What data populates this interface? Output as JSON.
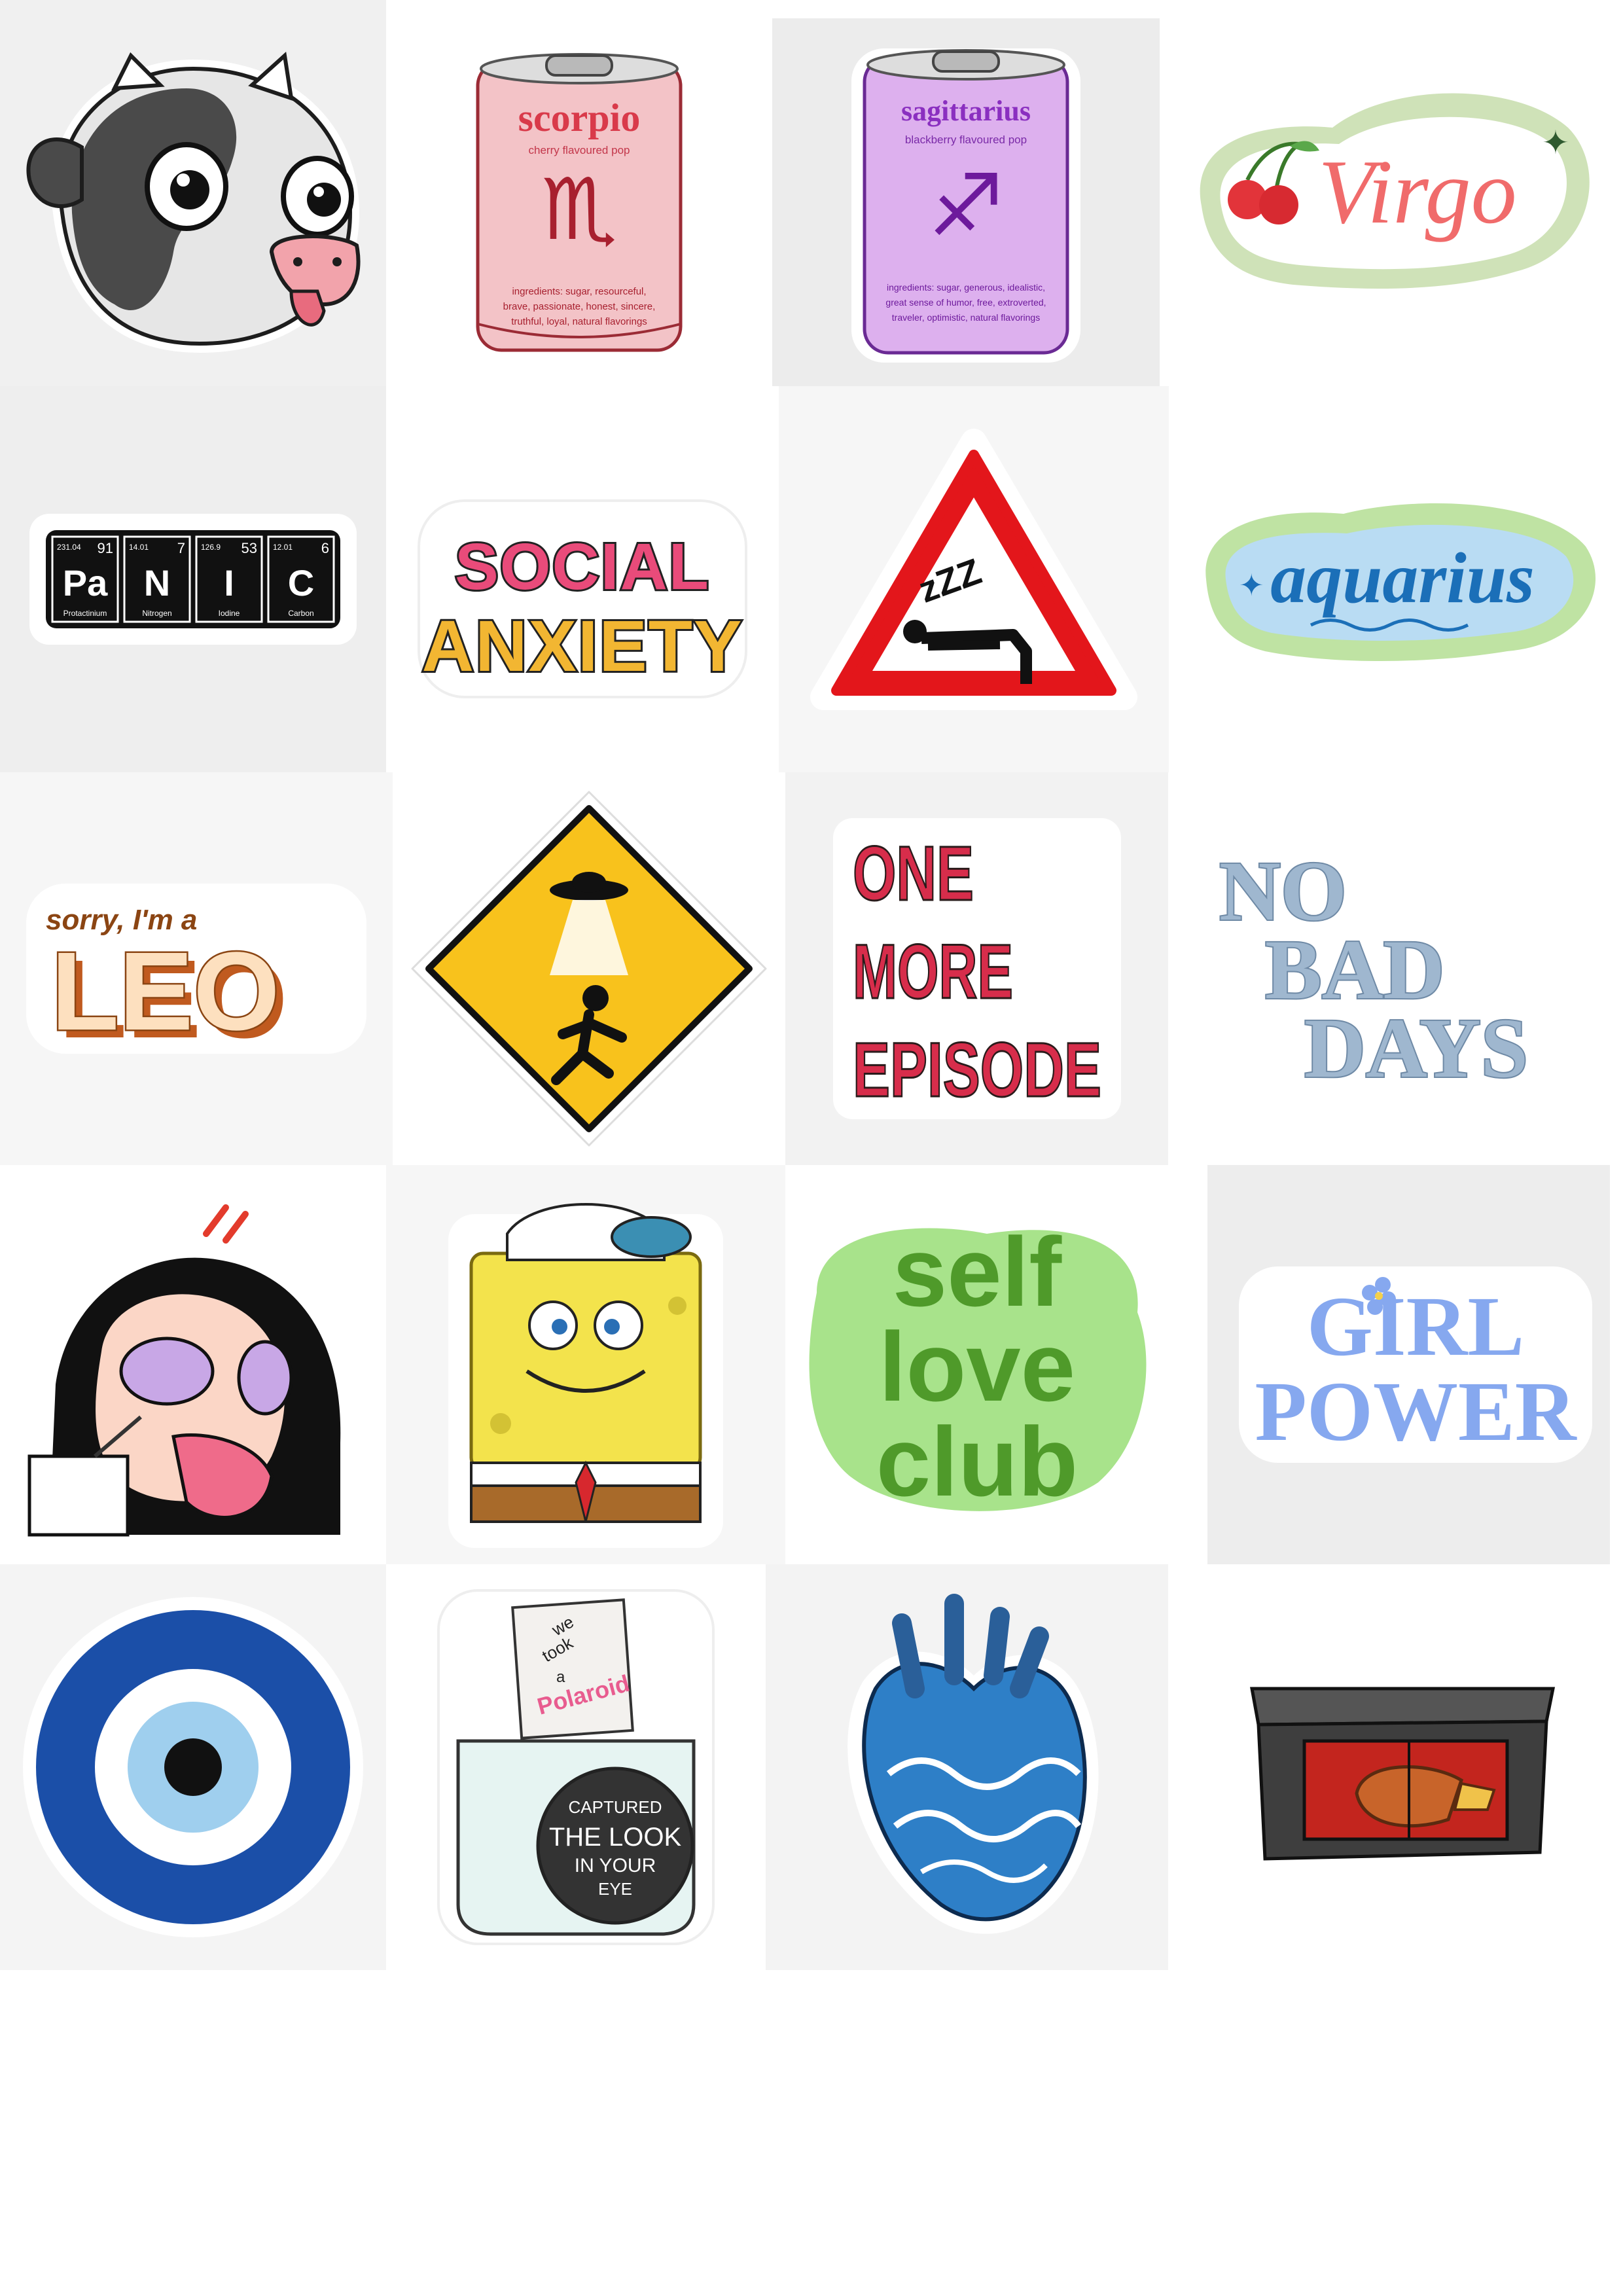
{
  "stickers": {
    "scorpio": {
      "title": "scorpio",
      "subtitle": "cherry flavoured pop",
      "ingredients_1": "ingredients: sugar, resourceful,",
      "ingredients_2": "brave, passionate, honest, sincere,",
      "ingredients_3": "truthful, loyal, natural flavorings"
    },
    "sagittarius": {
      "title": "sagittarius",
      "subtitle": "blackberry flavoured pop",
      "ingredients_1": "ingredients: sugar, generous, idealistic,",
      "ingredients_2": "great sense of humor, free, extroverted,",
      "ingredients_3": "traveler, optimistic, natural flavorings"
    },
    "virgo": {
      "text": "Virgo"
    },
    "panic": {
      "elements": [
        {
          "number": "231.04",
          "atomic": "91",
          "symbol": "Pa",
          "name": "Protactinium"
        },
        {
          "number": "14.01",
          "atomic": "7",
          "symbol": "N",
          "name": "Nitrogen"
        },
        {
          "number": "126.9",
          "atomic": "53",
          "symbol": "I",
          "name": "Iodine"
        },
        {
          "number": "12.01",
          "atomic": "6",
          "symbol": "C",
          "name": "Carbon"
        }
      ]
    },
    "social_anxiety": {
      "line1": "SOCIAL",
      "line2": "ANXIETY"
    },
    "sleep_sign": {
      "zzz": "zZZ"
    },
    "aquarius": {
      "text": "aquarius"
    },
    "leo": {
      "small": "sorry, I'm a",
      "big": "LEO"
    },
    "one_more_episode": {
      "line1": "ONE",
      "line2": "MORE",
      "line3": "EPISODE"
    },
    "no_bad_days": {
      "line1": "NO",
      "line2": "BAD",
      "line3": "DAYS"
    },
    "self_love_club": {
      "line1": "self",
      "line2": "love",
      "line3": "club"
    },
    "girl_power": {
      "line1": "GIRL",
      "line2": "POWER"
    },
    "polaroid": {
      "card1": "we",
      "card2": "took",
      "card3": "a",
      "card4": "Polaroid",
      "lens1": "CAPTURED",
      "lens2": "THE LOOK",
      "lens3": "IN YOUR",
      "lens4": "EYE"
    }
  },
  "colors": {
    "scorpio": "#d93a4a",
    "sagittarius": "#8a2fc0",
    "virgo": "#f06b6b",
    "aquarius": "#1b6fb8",
    "leo_brown": "#8b4513",
    "episode_red": "#d72d4b",
    "no_bad_days": "#9fb7cf",
    "self_love": "#4f9a2a",
    "girl_power": "#86a8ef"
  }
}
